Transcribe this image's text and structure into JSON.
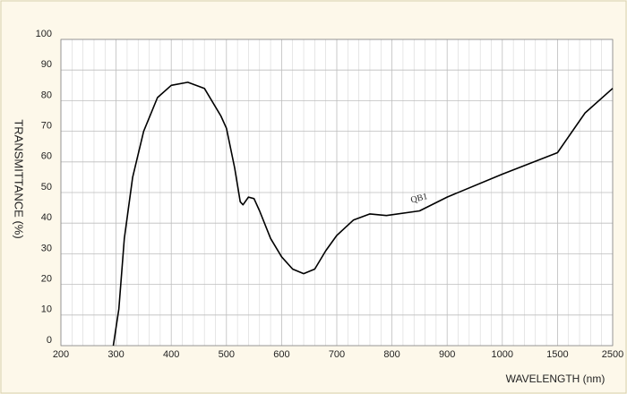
{
  "chart_data": {
    "type": "line",
    "xlabel": "WAVELENGTH (nm)",
    "ylabel": "TRANSMITTANCE   (%)",
    "x": [
      295,
      305,
      315,
      330,
      350,
      375,
      400,
      430,
      460,
      490,
      500,
      515,
      525,
      530,
      540,
      550,
      560,
      580,
      600,
      620,
      640,
      660,
      680,
      700,
      730,
      760,
      790,
      850,
      900,
      1000,
      1500,
      2000,
      2500
    ],
    "series": [
      {
        "name": "QB1",
        "color": "#000000",
        "values": [
          0,
          12,
          35,
          55,
          70,
          81,
          85,
          86,
          84,
          75,
          71,
          58,
          47,
          46,
          48.5,
          48,
          44,
          35,
          29,
          25,
          23.5,
          25,
          31,
          36,
          41,
          43,
          42.5,
          44,
          48.5,
          56,
          63,
          76,
          84
        ]
      }
    ],
    "xlim": [
      200,
      2500
    ],
    "xticks": [
      200,
      300,
      400,
      500,
      600,
      700,
      800,
      900,
      1000,
      1500,
      2500
    ],
    "ylim": [
      0,
      100
    ],
    "yticks": [
      0,
      10,
      20,
      30,
      40,
      50,
      60,
      70,
      80,
      90,
      100
    ],
    "grid": true
  }
}
